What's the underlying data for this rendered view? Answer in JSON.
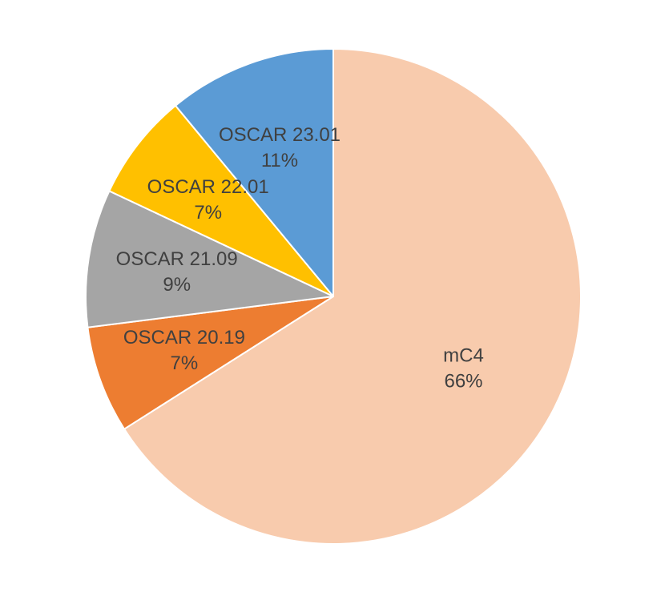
{
  "chart_data": {
    "type": "pie",
    "title": "",
    "start_angle_deg": 0,
    "direction": "clockwise",
    "slices": [
      {
        "label": "mC4",
        "value": 66,
        "percent_label": "66%",
        "color": "#F8CBAD"
      },
      {
        "label": "OSCAR 20.19",
        "value": 7,
        "percent_label": "7%",
        "color": "#ED7D31"
      },
      {
        "label": "OSCAR 21.09",
        "value": 9,
        "percent_label": "9%",
        "color": "#A5A5A5"
      },
      {
        "label": "OSCAR 22.01",
        "value": 7,
        "percent_label": "7%",
        "color": "#FFC000"
      },
      {
        "label": "OSCAR 23.01",
        "value": 11,
        "percent_label": "11%",
        "color": "#5B9BD5"
      }
    ],
    "slice_border_color": "#FFFFFF",
    "label_color": "#404040"
  }
}
